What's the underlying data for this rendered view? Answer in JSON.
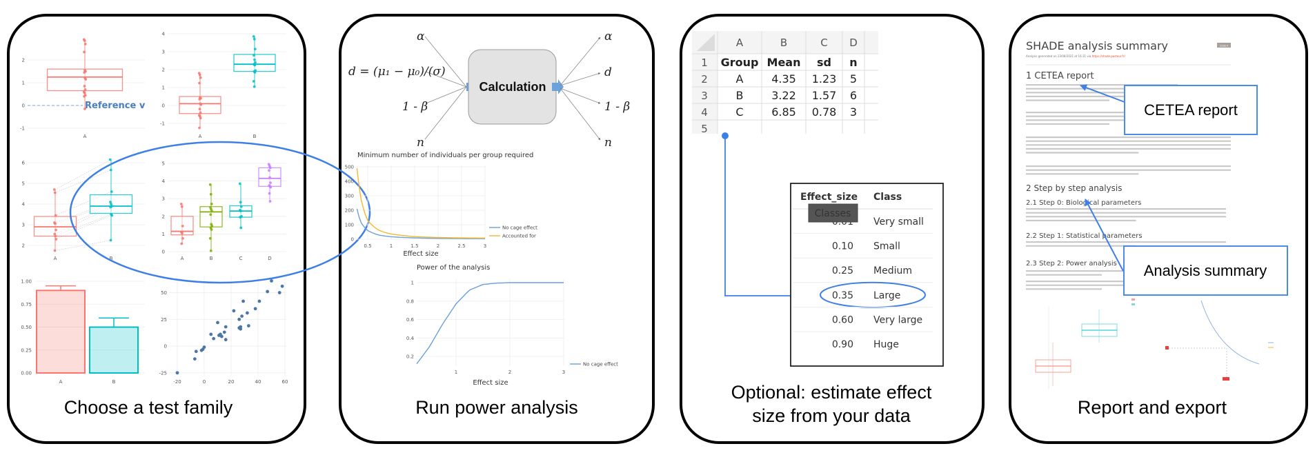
{
  "colors": {
    "accent_blue": "#3d7fe6",
    "red": "#f8766d",
    "teal": "#00bfc4",
    "green": "#7cae00",
    "purple": "#c77cff",
    "line_blue": "#6a9fd8",
    "line_orange": "#f5b731",
    "calc_box": "#e3e3e3"
  },
  "panels": [
    {
      "caption": "Choose a test family"
    },
    {
      "caption": "Run power analysis"
    },
    {
      "caption_line1": "Optional: estimate effect",
      "caption_line2": "size from your data"
    },
    {
      "caption": "Report and export"
    }
  ],
  "power_diagram": {
    "inputs": [
      "α",
      "d = (μ₁ − μ₀)/(σ)",
      "1 - β",
      "n"
    ],
    "box_label": "Calculation",
    "outputs": [
      "α",
      "d",
      "1 - β",
      "n"
    ]
  },
  "chart_data": [
    {
      "type": "box",
      "id": "one-sample",
      "categories": [
        "A"
      ],
      "yticks": [
        -1,
        0,
        1,
        2
      ],
      "annotation": "Reference val",
      "reference": 0,
      "groups": [
        {
          "name": "A",
          "color": "#f8766d",
          "q1": 0.65,
          "median": 1.25,
          "q3": 1.6,
          "low": -0.15,
          "high": 2.9,
          "points": [
            2.9,
            2.85,
            2.7,
            2.35,
            1.55,
            1.5,
            1.45,
            1.2,
            1.15,
            0.85,
            0.7,
            0.6,
            0.55,
            0.45,
            0.4,
            -0.15
          ]
        }
      ]
    },
    {
      "type": "box",
      "id": "two-sample",
      "categories": [
        "A",
        "B"
      ],
      "yticks": [
        -1,
        0,
        1,
        2,
        3,
        4
      ],
      "groups": [
        {
          "name": "A",
          "color": "#f8766d",
          "q1": -0.45,
          "median": 0.1,
          "q3": 0.5,
          "low": -1.25,
          "high": 1.8,
          "points": [
            1.8,
            1.7,
            1.55,
            1.25,
            0.45,
            0.4,
            0.35,
            0.1,
            0.05,
            -0.2,
            -0.4,
            -0.55,
            -0.6,
            -0.7,
            -1.25
          ]
        },
        {
          "name": "B",
          "color": "#00bfc4",
          "q1": 1.9,
          "median": 2.3,
          "q3": 2.85,
          "low": 1.05,
          "high": 3.85,
          "points": [
            3.85,
            3.7,
            3.15,
            2.8,
            2.55,
            2.4,
            2.3,
            2.25,
            1.95,
            1.9,
            1.85,
            1.35,
            1.05
          ]
        }
      ]
    },
    {
      "type": "box",
      "id": "paired",
      "categories": [
        "A",
        "B"
      ],
      "yticks": [
        2,
        3,
        4,
        5,
        6
      ],
      "paired": true,
      "groups": [
        {
          "name": "A",
          "color": "#f8766d",
          "q1": 2.45,
          "median": 2.9,
          "q3": 3.4,
          "low": 1.75,
          "high": 4.7,
          "points": [
            4.7,
            4.55,
            3.45,
            3.1,
            3.05,
            2.75,
            2.55,
            2.45,
            2.3,
            1.75
          ]
        },
        {
          "name": "B",
          "color": "#00bfc4",
          "q1": 3.55,
          "median": 3.9,
          "q3": 4.45,
          "low": 2.25,
          "high": 6.15,
          "points": [
            6.15,
            5.65,
            4.6,
            4.1,
            4.0,
            3.9,
            3.85,
            3.5,
            3.45,
            2.25
          ]
        }
      ]
    },
    {
      "type": "box",
      "id": "multi-group",
      "categories": [
        "A",
        "B",
        "C",
        "D"
      ],
      "yticks": [
        0,
        1,
        2,
        3,
        4,
        5
      ],
      "groups": [
        {
          "name": "A",
          "color": "#f8766d",
          "q1": 0.95,
          "median": 1.15,
          "q3": 2.0,
          "low": 0.45,
          "high": 2.7,
          "points": [
            2.7,
            2.55,
            1.45,
            1.1,
            1.05,
            0.75,
            0.45
          ]
        },
        {
          "name": "B",
          "color": "#7cae00",
          "q1": 1.4,
          "median": 2.25,
          "q3": 2.55,
          "low": 0.05,
          "high": 3.8,
          "points": [
            3.8,
            3.25,
            2.7,
            2.5,
            2.4,
            2.3,
            2.1,
            1.55,
            1.45,
            1.35,
            1.25,
            0.75,
            0.05
          ]
        },
        {
          "name": "C",
          "color": "#00bfc4",
          "q1": 1.95,
          "median": 2.3,
          "q3": 2.6,
          "low": 1.35,
          "high": 3.85,
          "points": [
            3.85,
            2.8,
            2.55,
            2.35,
            2.3,
            2.0,
            1.95,
            1.35
          ]
        },
        {
          "name": "D",
          "color": "#c77cff",
          "q1": 3.7,
          "median": 4.15,
          "q3": 4.75,
          "low": 2.85,
          "high": 4.95,
          "points": [
            4.95,
            4.85,
            4.75,
            4.6,
            4.2,
            3.9,
            3.75,
            3.7,
            3.65,
            3.3,
            2.85
          ]
        }
      ]
    },
    {
      "type": "bar",
      "id": "proportions",
      "categories": [
        "A",
        "B"
      ],
      "values": [
        0.9,
        0.5
      ],
      "error_high": [
        0.95,
        0.6
      ],
      "yticks": [
        "0.00",
        "0.25",
        "0.50",
        "0.75",
        "1.00"
      ],
      "ylim": [
        0,
        1
      ],
      "colors": [
        "#f8766d",
        "#00bfc4"
      ]
    },
    {
      "type": "scatter",
      "id": "correlation",
      "xticks": [
        -20,
        0,
        20,
        40,
        60
      ],
      "yticks": [
        -25,
        0,
        25,
        50
      ],
      "color": "#4a76a8",
      "points": [
        [
          -20,
          -25
        ],
        [
          -7,
          -12
        ],
        [
          -6,
          -5
        ],
        [
          -2,
          -4
        ],
        [
          -1,
          -3
        ],
        [
          0,
          -1
        ],
        [
          5,
          11
        ],
        [
          7,
          7
        ],
        [
          10,
          22
        ],
        [
          11,
          10
        ],
        [
          12,
          11
        ],
        [
          13,
          9
        ],
        [
          15,
          13
        ],
        [
          16,
          6
        ],
        [
          16,
          18
        ],
        [
          22,
          33
        ],
        [
          26,
          25
        ],
        [
          26,
          17
        ],
        [
          27,
          16
        ],
        [
          27,
          18
        ],
        [
          28,
          28
        ],
        [
          29,
          42
        ],
        [
          32,
          31
        ],
        [
          33,
          19
        ],
        [
          38,
          35
        ],
        [
          41,
          42
        ],
        [
          47,
          51
        ],
        [
          50,
          61
        ],
        [
          56,
          50
        ],
        [
          58,
          56
        ]
      ]
    },
    {
      "type": "line",
      "id": "sample-size",
      "title": "Minimum number of individuals per group required",
      "xlabel": "Effect size",
      "xticks": [
        "0.5",
        "1",
        "1.5",
        "2",
        "2.5",
        "3"
      ],
      "yticks": [
        "0",
        "100",
        "200",
        "300",
        "400",
        "500"
      ],
      "ylim": [
        0,
        500
      ],
      "xlim": [
        0.27,
        3
      ],
      "x": [
        0.27,
        0.35,
        0.5,
        0.75,
        1,
        1.5,
        2,
        2.5,
        3
      ],
      "series": [
        {
          "name": "No cage effect",
          "color": "#6a9fd8",
          "values": [
            210,
            120,
            60,
            28,
            17,
            9,
            6,
            5,
            4
          ]
        },
        {
          "name": "Accounted for",
          "color": "#f5b731",
          "values": [
            490,
            290,
            130,
            60,
            36,
            18,
            12,
            9,
            8
          ]
        }
      ]
    },
    {
      "type": "line",
      "id": "power",
      "title": "Power of the analysis",
      "xlabel": "Effect size",
      "xticks": [
        "1",
        "2",
        "3"
      ],
      "yticks": [
        "0.2",
        "0.4",
        "0.6",
        "0.8",
        "1"
      ],
      "xlim": [
        0.27,
        3
      ],
      "x": [
        0.27,
        0.5,
        0.75,
        1,
        1.25,
        1.5,
        1.75,
        2,
        3
      ],
      "series": [
        {
          "name": "No cage effect",
          "color": "#6a9fd8",
          "values": [
            0.12,
            0.3,
            0.55,
            0.77,
            0.92,
            0.98,
            0.995,
            1,
            1
          ]
        }
      ]
    }
  ],
  "spreadsheet": {
    "columns": [
      "A",
      "B",
      "C",
      "D"
    ],
    "row_numbers": [
      "1",
      "2",
      "3",
      "4",
      "5"
    ],
    "rows": [
      [
        "Group",
        "Mean",
        "sd",
        "n"
      ],
      [
        "A",
        "4.35",
        "1.23",
        "5"
      ],
      [
        "B",
        "3.22",
        "1.57",
        "6"
      ],
      [
        "C",
        "6.85",
        "0.78",
        "3"
      ]
    ]
  },
  "effect_table": {
    "headers": [
      "Effect_size",
      "Class"
    ],
    "tooltip": "Classes",
    "rows": [
      [
        "0.01",
        "Very small"
      ],
      [
        "0.10",
        "Small"
      ],
      [
        "0.25",
        "Medium"
      ],
      [
        "0.35",
        "Large"
      ],
      [
        "0.60",
        "Very large"
      ],
      [
        "0.90",
        "Huge"
      ]
    ],
    "highlighted": "0.35"
  },
  "report": {
    "title": "SHADE analysis summary",
    "subtitle": "Analysis generated on 23/08/2021 at 16:31 via ",
    "link": "https://shade.pasteur.fr/",
    "code_button": "Code ▾",
    "sections": [
      "1 CETEA report",
      "2 Step by step analysis",
      "2.1 Step 0: Biological parameters",
      "2.2 Step 1: Statistical parameters",
      "2.3 Step 2: Power analysis"
    ],
    "callouts": [
      "CETEA report",
      "Analysis summary"
    ]
  }
}
